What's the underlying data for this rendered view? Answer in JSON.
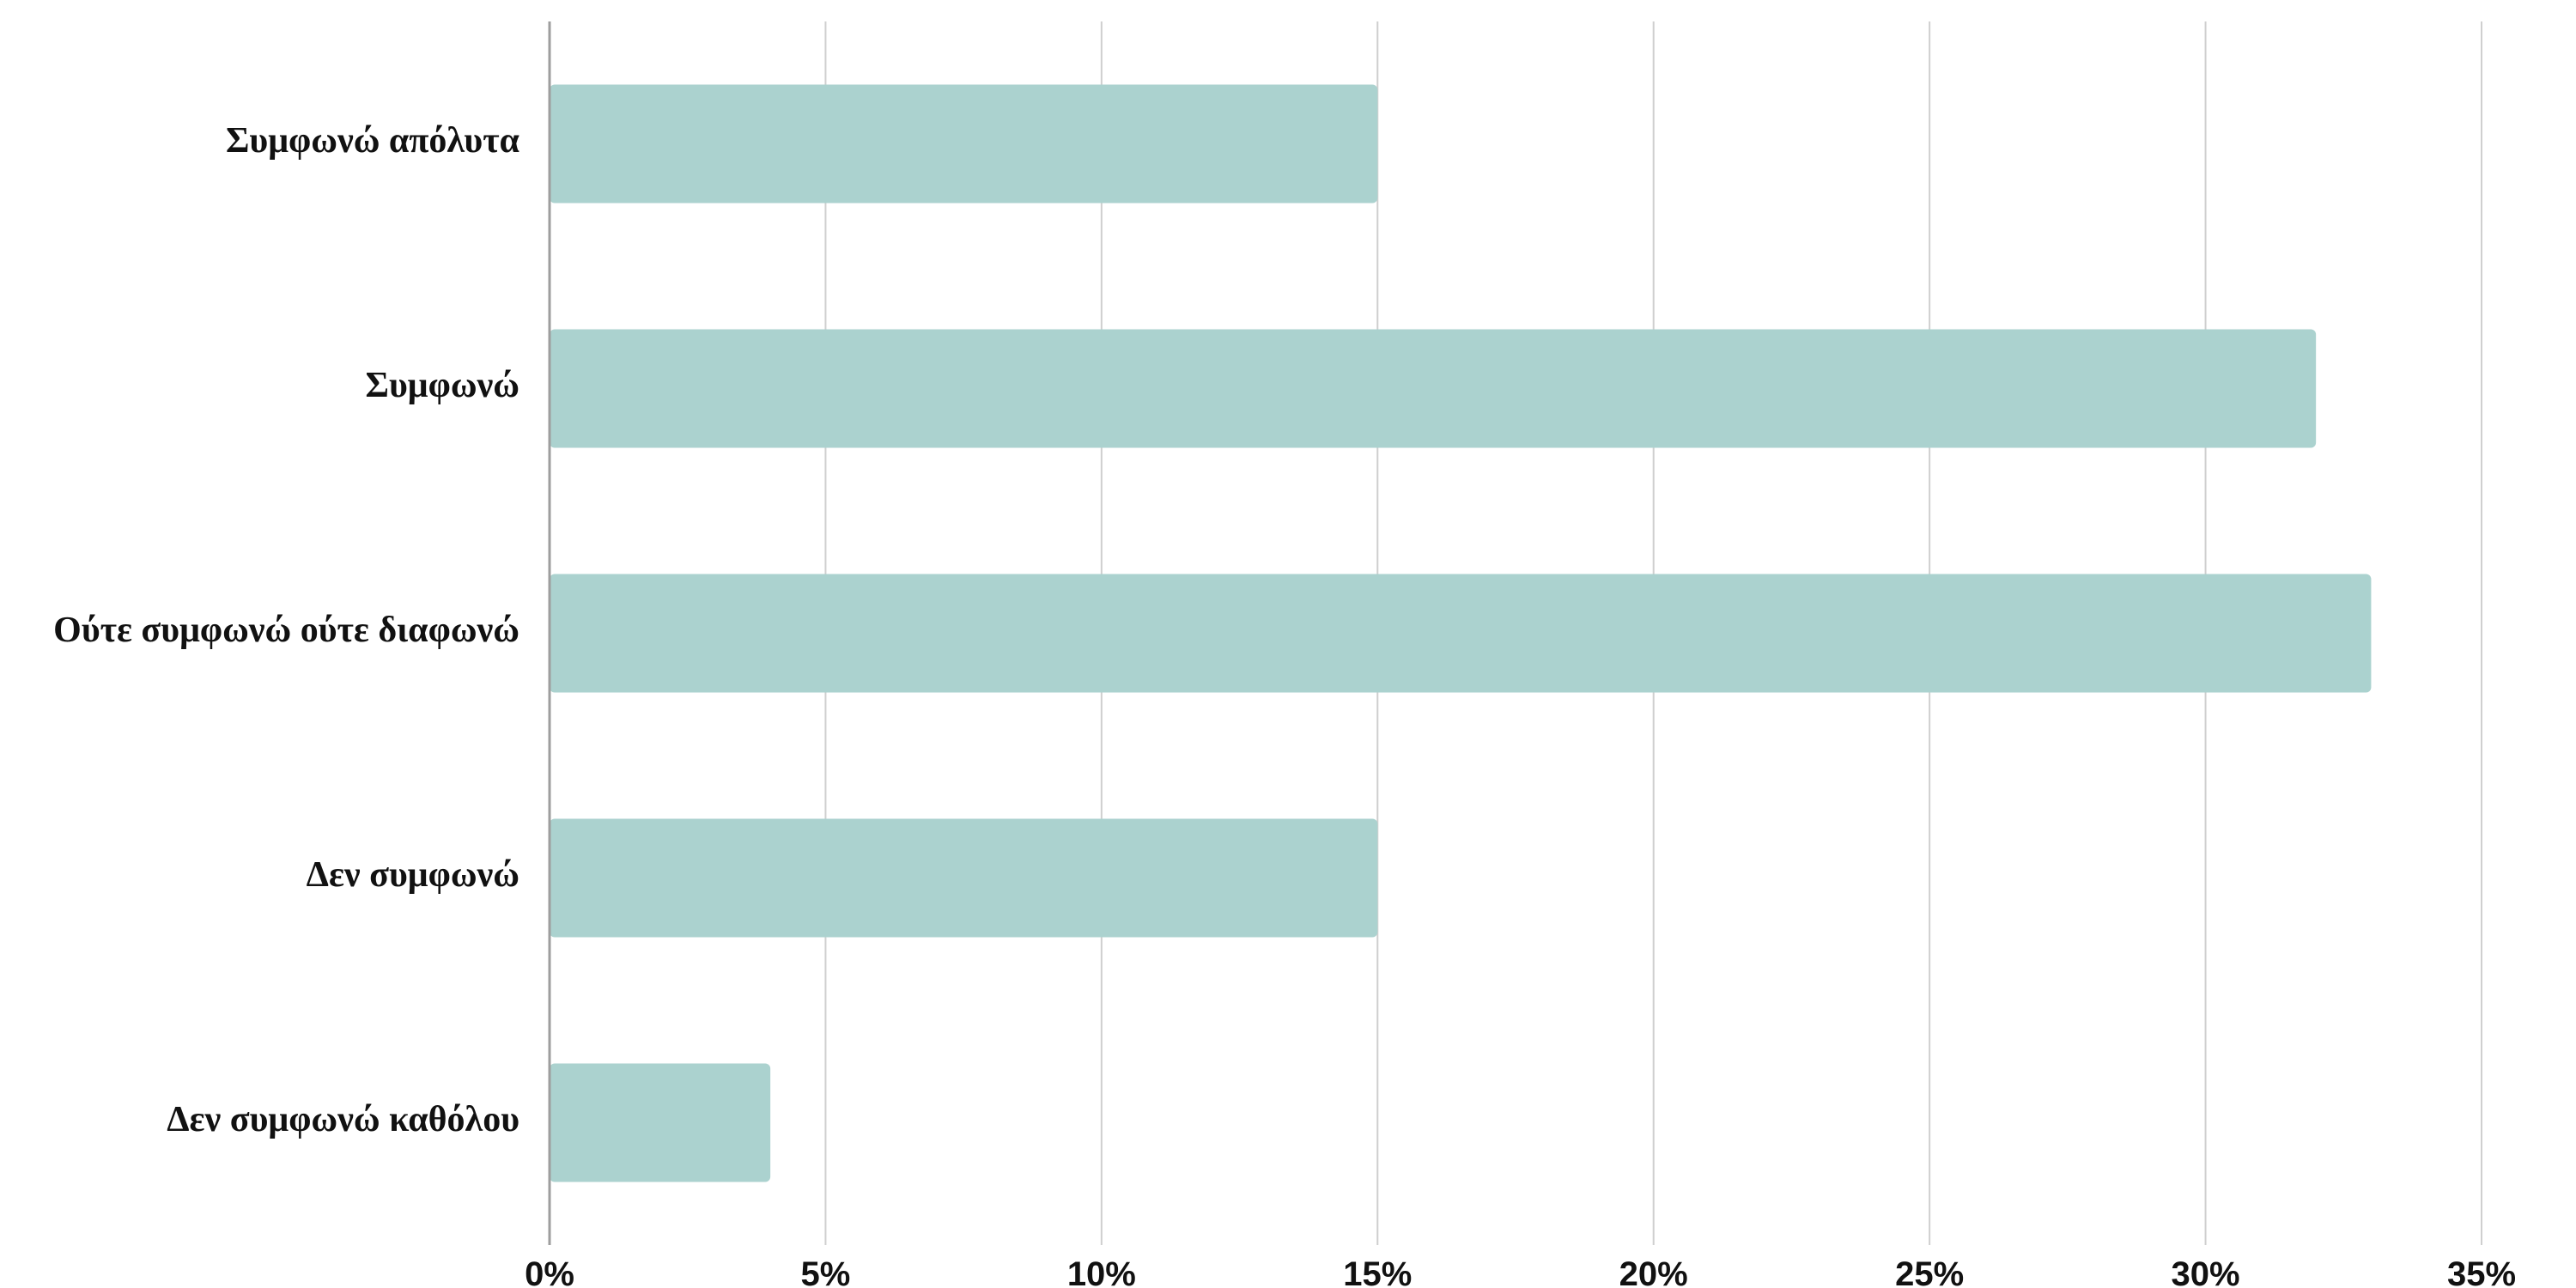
{
  "chart_data": {
    "type": "bar",
    "orientation": "horizontal",
    "categories": [
      "Συμφωνώ απόλυτα",
      "Συμφωνώ",
      "Ούτε συμφωνώ ούτε διαφωνώ",
      "Δεν συμφωνώ",
      "Δεν συμφωνώ καθόλου"
    ],
    "values": [
      15,
      32,
      33,
      15,
      4
    ],
    "value_unit": "%",
    "xlim": [
      0,
      35
    ],
    "x_ticks": [
      0,
      5,
      10,
      15,
      20,
      25,
      30,
      35
    ],
    "x_tick_labels": [
      "0%",
      "5%",
      "10%",
      "15%",
      "20%",
      "25%",
      "30%",
      "35%"
    ],
    "title": "",
    "xlabel": "",
    "ylabel": "",
    "grid": "vertical",
    "legend": "none",
    "colors": {
      "bar": "#abd2cf",
      "grid": "#cfcfcf",
      "axis": "#9e9e9e",
      "text": "#111111"
    }
  }
}
